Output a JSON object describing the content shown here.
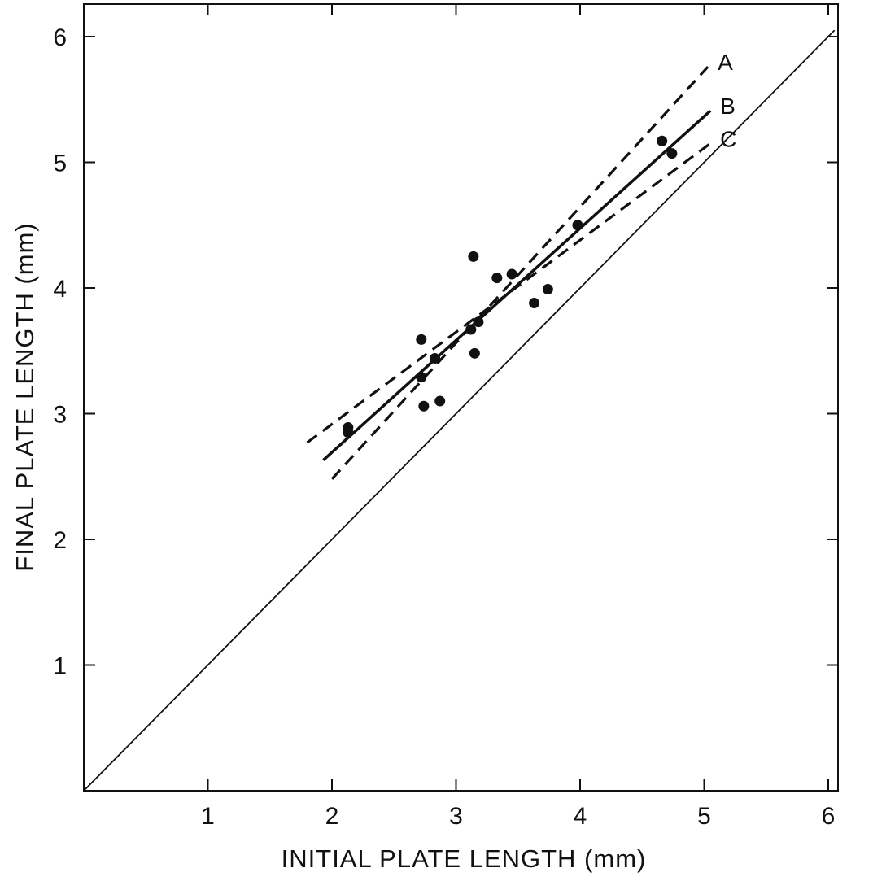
{
  "chart_data": {
    "type": "scatter",
    "title": "",
    "xlabel": "INITIAL PLATE LENGTH (mm)",
    "ylabel": "FINAL PLATE LENGTH (mm)",
    "xlim": [
      0,
      6.25
    ],
    "ylim": [
      0,
      6.25
    ],
    "x_ticks": [
      1,
      2,
      3,
      4,
      5,
      6
    ],
    "y_ticks": [
      1,
      2,
      3,
      4,
      5,
      6
    ],
    "grid": false,
    "points": [
      {
        "x": 2.13,
        "y": 2.89
      },
      {
        "x": 2.13,
        "y": 2.85
      },
      {
        "x": 2.72,
        "y": 3.59
      },
      {
        "x": 2.72,
        "y": 3.29
      },
      {
        "x": 2.74,
        "y": 3.06
      },
      {
        "x": 2.83,
        "y": 3.44
      },
      {
        "x": 2.87,
        "y": 3.1
      },
      {
        "x": 3.12,
        "y": 3.67
      },
      {
        "x": 3.14,
        "y": 4.25
      },
      {
        "x": 3.15,
        "y": 3.48
      },
      {
        "x": 3.18,
        "y": 3.73
      },
      {
        "x": 3.33,
        "y": 4.08
      },
      {
        "x": 3.45,
        "y": 4.11
      },
      {
        "x": 3.63,
        "y": 3.88
      },
      {
        "x": 3.74,
        "y": 3.99
      },
      {
        "x": 3.98,
        "y": 4.5
      },
      {
        "x": 4.66,
        "y": 5.17
      },
      {
        "x": 4.74,
        "y": 5.07
      }
    ],
    "lines": [
      {
        "name": "A",
        "style": "dashed",
        "x": [
          2.0,
          5.03
        ],
        "y": [
          2.48,
          5.76
        ]
      },
      {
        "name": "B",
        "style": "solid",
        "x": [
          1.93,
          5.05
        ],
        "y": [
          2.63,
          5.41
        ]
      },
      {
        "name": "C",
        "style": "dashed",
        "x": [
          1.8,
          5.05
        ],
        "y": [
          2.77,
          5.15
        ]
      },
      {
        "name": "",
        "style": "solid-thin",
        "x": [
          0,
          6.05
        ],
        "y": [
          0,
          6.05
        ]
      }
    ],
    "colors": {
      "ink": "#111111",
      "background": "#ffffff"
    }
  }
}
